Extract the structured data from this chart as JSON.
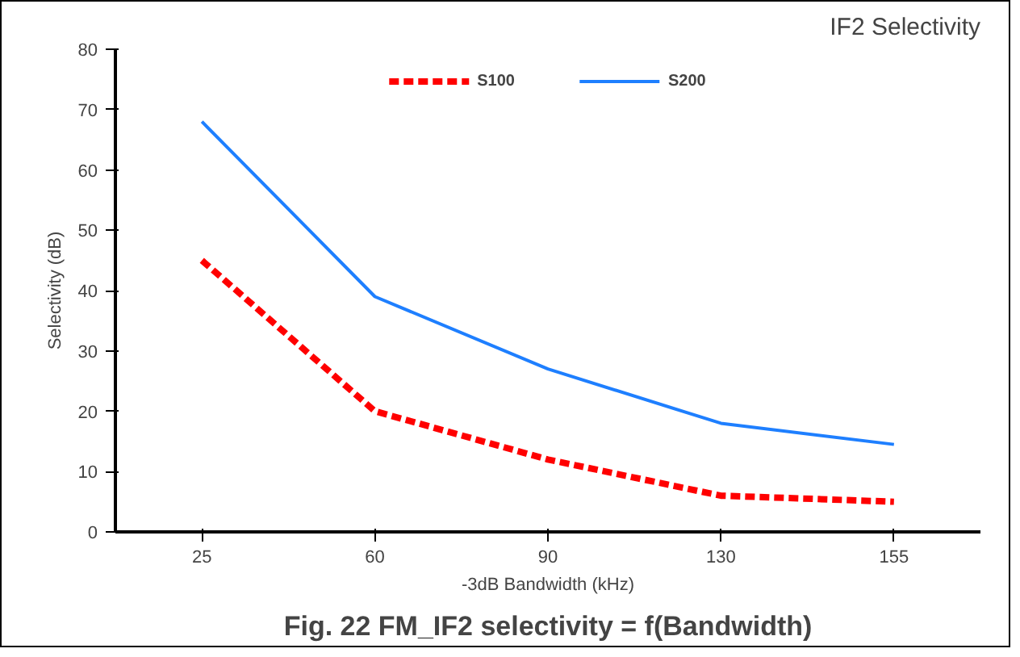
{
  "chart_data": {
    "type": "line",
    "title": "IF2 Selectivity",
    "xlabel": "-3dB Bandwidth (kHz)",
    "ylabel": "Selectivity (dB)",
    "categories": [
      "25",
      "60",
      "90",
      "130",
      "155"
    ],
    "series": [
      {
        "name": "S100",
        "color": "#ff0000",
        "values": [
          45,
          20,
          12,
          6,
          5
        ],
        "line_style": "dashed"
      },
      {
        "name": "S200",
        "color": "#1e7fff",
        "values": [
          68,
          39,
          27,
          18,
          14.5
        ],
        "line_style": "solid"
      }
    ],
    "ylim": [
      0,
      80
    ],
    "yticks": [
      0,
      10,
      20,
      30,
      40,
      50,
      60,
      70,
      80
    ],
    "grid": false,
    "legend": "top",
    "marker": "none",
    "annotations": [
      "Fig. 22 FM_IF2 selectivity = f(Bandwidth)"
    ]
  }
}
